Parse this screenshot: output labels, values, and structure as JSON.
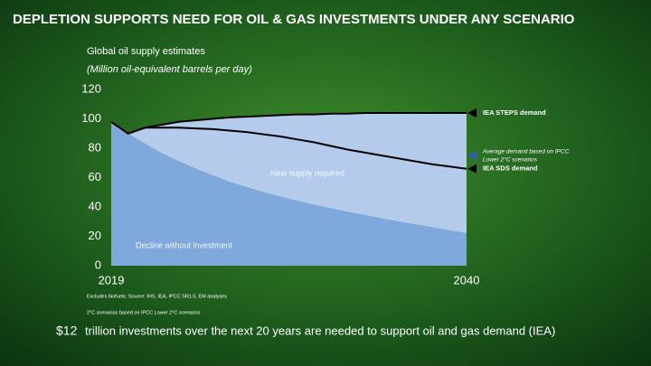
{
  "chart_data": {
    "type": "area",
    "title": "DEPLETION SUPPORTS NEED FOR OIL & GAS INVESTMENTS UNDER ANY SCENARIO",
    "subtitle": "Global oil supply estimates",
    "ylabel": "(Million oil-equivalent barrels per day)",
    "x": [
      2019,
      2020,
      2021,
      2022,
      2023,
      2024,
      2025,
      2026,
      2027,
      2028,
      2029,
      2030,
      2031,
      2032,
      2033,
      2034,
      2035,
      2036,
      2037,
      2038,
      2039,
      2040
    ],
    "xlim": [
      2019,
      2040
    ],
    "xticks": [
      2019,
      2040
    ],
    "ylim": [
      0,
      120
    ],
    "yticks": [
      0,
      20,
      40,
      60,
      80,
      100,
      120
    ],
    "series": [
      {
        "name": "Decline without investment",
        "color": "#7fa8dc",
        "values": [
          98,
          90,
          83,
          76.5,
          71,
          66,
          61.5,
          57,
          53.5,
          50,
          47,
          44,
          41.5,
          39,
          36.5,
          34.5,
          32,
          30,
          28,
          26,
          24,
          22
        ]
      },
      {
        "name": "IEA STEPS demand",
        "color": "#b4cbeb",
        "values": [
          98,
          90,
          94,
          96,
          98,
          99,
          100,
          101,
          101.5,
          102,
          102.5,
          103,
          103,
          103.5,
          103.5,
          104,
          104,
          104,
          104,
          104,
          104,
          104
        ]
      },
      {
        "name": "IEA SDS demand",
        "color": "#000000",
        "values": [
          98,
          90,
          94,
          94,
          94,
          93.5,
          93,
          92,
          91,
          89.5,
          88,
          86,
          84,
          81.5,
          79,
          77,
          75,
          73,
          71,
          69,
          67.5,
          66
        ]
      }
    ],
    "area_label": "New supply required",
    "annotation": [
      "Average demand based on IPCC",
      "Lower 2°C scenarios"
    ],
    "footnotes": [
      "Excludes biofuels; Source: IHS, IEA, IPCC SR1.5, EM analyses",
      "2°C scenarios based on IPCC Lower 2°C scenarios"
    ],
    "highlight_figure": "$12",
    "highlight_text": "trillion investments over the next 20 years are needed to support oil and gas demand (IEA)"
  }
}
